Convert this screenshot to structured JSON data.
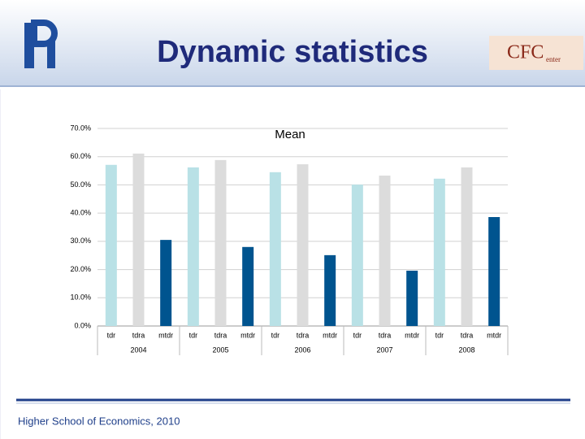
{
  "header": {
    "title": "Dynamic statistics",
    "logo_right": "CFC",
    "logo_right_sub": "enter"
  },
  "footer": {
    "text": "Higher School of Economics, 2010"
  },
  "chart_data": {
    "type": "bar",
    "title": "Mean",
    "categories": [
      "2004",
      "2005",
      "2006",
      "2007",
      "2008"
    ],
    "series": [
      {
        "name": "tdr",
        "color": "#b9e1e6",
        "values": [
          57.1,
          56.2,
          54.5,
          50.1,
          52.2
        ]
      },
      {
        "name": "tdra",
        "color": "#dcdcdc",
        "values": [
          61.1,
          58.8,
          57.3,
          53.3,
          56.2
        ]
      },
      {
        "name": "mtdr",
        "color": "#00548f",
        "values": [
          30.5,
          28.0,
          25.1,
          19.6,
          38.6
        ]
      }
    ],
    "ylim": [
      0,
      70
    ],
    "yticks": [
      {
        "value": 0,
        "label": "0.0%"
      },
      {
        "value": 10,
        "label": "10.0%"
      },
      {
        "value": 20,
        "label": "20.0%"
      },
      {
        "value": 30,
        "label": "30.0%"
      },
      {
        "value": 40,
        "label": "40.0%"
      },
      {
        "value": 50,
        "label": "50.0%"
      },
      {
        "value": 60,
        "label": "60.0%"
      },
      {
        "value": 70,
        "label": "70.0%"
      }
    ],
    "grid": true
  }
}
